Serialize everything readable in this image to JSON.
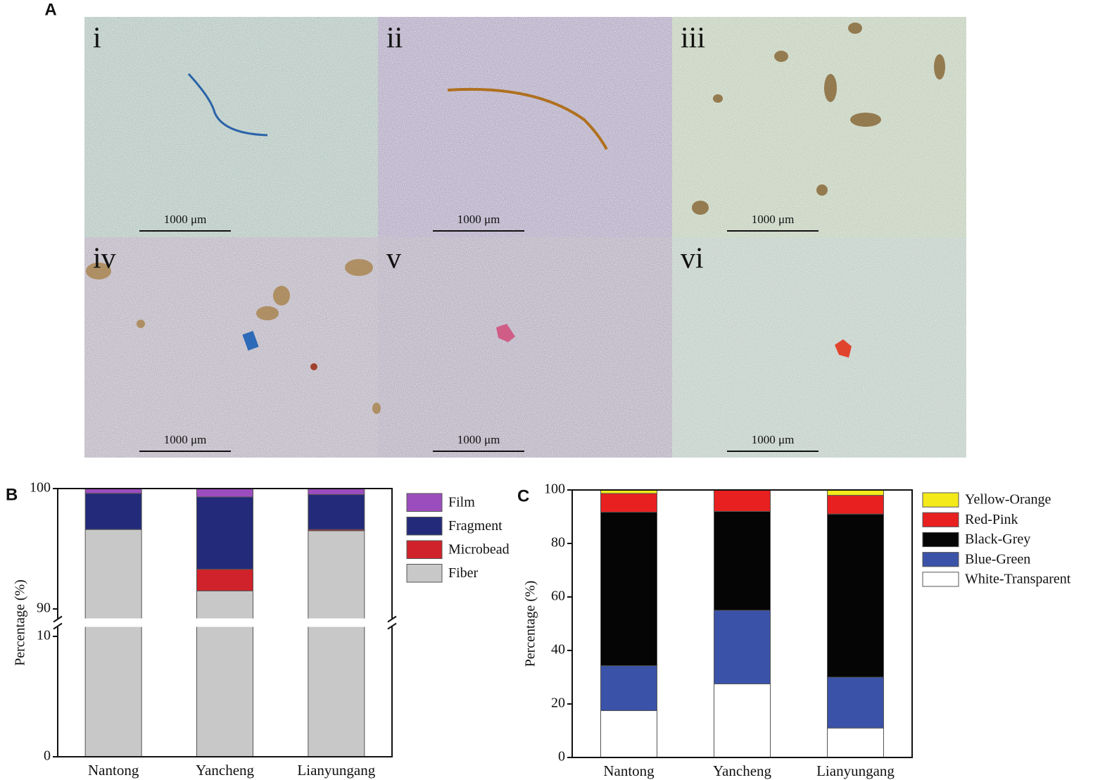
{
  "figure": {
    "label": "A",
    "panels": [
      {
        "label": "i",
        "scale": "1000 μm"
      },
      {
        "label": "ii",
        "scale": "1000 μm"
      },
      {
        "label": "iii",
        "scale": "1000 μm"
      },
      {
        "label": "iv",
        "scale": "1000 μm"
      },
      {
        "label": "v",
        "scale": "1000 μm"
      },
      {
        "label": "vi",
        "scale": "1000 μm"
      }
    ]
  },
  "chart_data": [
    {
      "type": "stacked-bar",
      "label": "B",
      "y_label": "Percentage (%)",
      "categories": [
        "Nantong",
        "Yancheng",
        "Lianyungang"
      ],
      "ylim": [
        0,
        100
      ],
      "y_break": [
        10,
        90
      ],
      "yticks": [
        0,
        10,
        90,
        100
      ],
      "series": [
        {
          "name": "Fiber",
          "color": "#c8c8c8",
          "values": [
            96.6,
            91.5,
            96.5
          ]
        },
        {
          "name": "Microbead",
          "color": "#d0222a",
          "values": [
            0,
            1.8,
            0.1
          ]
        },
        {
          "name": "Fragment",
          "color": "#232a7a",
          "values": [
            3.0,
            6.0,
            2.9
          ]
        },
        {
          "name": "Film",
          "color": "#9b4dbd",
          "values": [
            0.4,
            0.7,
            0.5
          ]
        }
      ]
    },
    {
      "type": "stacked-bar",
      "label": "C",
      "y_label": "Percentage (%)",
      "categories": [
        "Nantong",
        "Yancheng",
        "Lianyungang"
      ],
      "ylim": [
        0,
        100
      ],
      "yticks": [
        0,
        20,
        40,
        60,
        80,
        100
      ],
      "series": [
        {
          "name": "White-Transparent",
          "color": "#ffffff",
          "values": [
            17.5,
            27.5,
            11
          ]
        },
        {
          "name": "Blue-Green",
          "color": "#3a52a8",
          "values": [
            16.8,
            27.5,
            19
          ]
        },
        {
          "name": "Black-Grey",
          "color": "#050505",
          "values": [
            57.4,
            37,
            61
          ]
        },
        {
          "name": "Red-Pink",
          "color": "#e8201f",
          "values": [
            7,
            8,
            7
          ]
        },
        {
          "name": "Yellow-Orange",
          "color": "#f4ea1a",
          "values": [
            1.3,
            0,
            2
          ]
        }
      ]
    }
  ]
}
